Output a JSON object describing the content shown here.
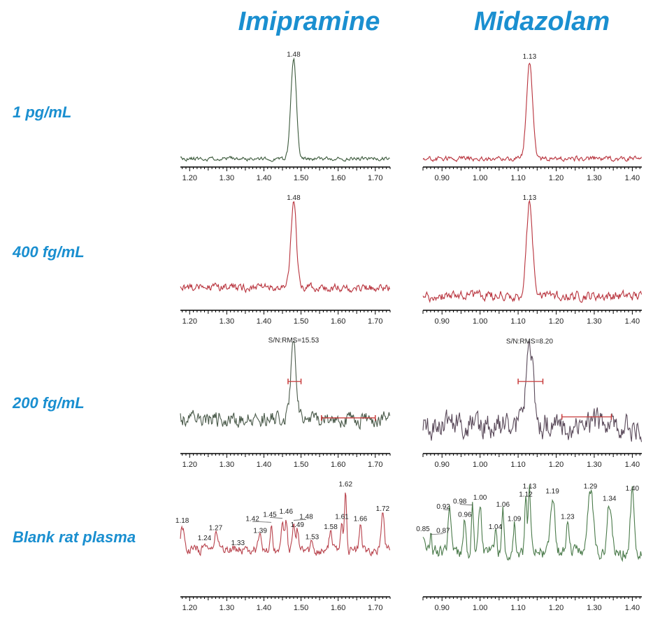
{
  "chart_data": {
    "type": "line",
    "columns": [
      "Imipramine",
      "Midazolam"
    ],
    "rows": [
      "1 pg/mL",
      "400 fg/mL",
      "200 fg/mL",
      "Blank rat plasma"
    ],
    "x_axes": {
      "Imipramine": {
        "xlim": [
          1.175,
          1.74
        ],
        "ticks": [
          "1.20",
          "1.30",
          "1.40",
          "1.50",
          "1.60",
          "1.70"
        ]
      },
      "Midazolam": {
        "xlim": [
          0.85,
          1.425
        ],
        "ticks": [
          "0.90",
          "1.00",
          "1.10",
          "1.20",
          "1.30",
          "1.40"
        ]
      }
    },
    "ylabel": "",
    "xlabel": "",
    "panels": [
      {
        "row": 0,
        "col": 0,
        "color": "#3c5a3c",
        "baseline": 2,
        "noise": 2,
        "seed": 11,
        "peaks": [
          {
            "rt": 1.48,
            "height": 98,
            "sigma": 0.0075,
            "label": "1.48"
          }
        ]
      },
      {
        "row": 0,
        "col": 1,
        "color": "#b8323c",
        "baseline": 2,
        "noise": 2.5,
        "seed": 23,
        "peaks": [
          {
            "rt": 1.13,
            "height": 96,
            "sigma": 0.008,
            "label": "1.13"
          }
        ]
      },
      {
        "row": 1,
        "col": 0,
        "color": "#b8323c",
        "baseline": 16,
        "noise": 4,
        "seed": 37,
        "peaks": [
          {
            "rt": 1.48,
            "height": 84,
            "sigma": 0.0075,
            "label": "1.48"
          }
        ]
      },
      {
        "row": 1,
        "col": 1,
        "color": "#b8323c",
        "baseline": 8,
        "noise": 5,
        "seed": 41,
        "peaks": [
          {
            "rt": 1.13,
            "height": 92,
            "sigma": 0.008,
            "label": "1.13"
          }
        ]
      },
      {
        "row": 2,
        "col": 0,
        "color": "#4a5a4a",
        "baseline": 28,
        "noise": 8,
        "seed": 53,
        "peaks": [
          {
            "rt": 1.48,
            "height": 72,
            "sigma": 0.0075
          }
        ],
        "annotation": "S/N:RMS=15.53",
        "signal_bar": {
          "x": [
            1.465,
            1.5
          ],
          "y": 65
        },
        "noise_bar": {
          "x": [
            1.555,
            1.7
          ],
          "y": 29
        }
      },
      {
        "row": 2,
        "col": 1,
        "color": "#5a4a5a",
        "baseline": 22,
        "noise": 14,
        "seed": 67,
        "peaks": [
          {
            "rt": 1.13,
            "height": 77,
            "sigma": 0.009
          }
        ],
        "annotation": "S/N:RMS=8.20",
        "signal_bar": {
          "x": [
            1.1,
            1.165
          ],
          "y": 65
        },
        "noise_bar": {
          "x": [
            1.215,
            1.345
          ],
          "y": 30
        }
      },
      {
        "row": 3,
        "col": 0,
        "color": "#b8424c",
        "baseline": 40,
        "noise": 5,
        "seed": 71,
        "peaks": [
          {
            "rt": 1.18,
            "height": 24,
            "sigma": 0.005,
            "label": "1.18"
          },
          {
            "rt": 1.24,
            "height": 7,
            "sigma": 0.004,
            "label": "1.24"
          },
          {
            "rt": 1.27,
            "height": 17,
            "sigma": 0.005,
            "label": "1.27"
          },
          {
            "rt": 1.33,
            "height": 2,
            "sigma": 0.004,
            "label": "1.33"
          },
          {
            "rt": 1.39,
            "height": 14,
            "sigma": 0.004,
            "label": "1.39"
          },
          {
            "rt": 1.42,
            "height": 26,
            "sigma": 0.003,
            "label": "1.42"
          },
          {
            "rt": 1.45,
            "height": 30,
            "sigma": 0.003,
            "label": "1.45"
          },
          {
            "rt": 1.46,
            "height": 33,
            "sigma": 0.003,
            "label": "1.46"
          },
          {
            "rt": 1.48,
            "height": 28,
            "sigma": 0.003,
            "label": "1.48"
          },
          {
            "rt": 1.49,
            "height": 20,
            "sigma": 0.003,
            "label": "1.49"
          },
          {
            "rt": 1.53,
            "height": 8,
            "sigma": 0.003,
            "label": "1.53"
          },
          {
            "rt": 1.58,
            "height": 18,
            "sigma": 0.004,
            "label": "1.58"
          },
          {
            "rt": 1.61,
            "height": 28,
            "sigma": 0.003,
            "label": "1.61"
          },
          {
            "rt": 1.62,
            "height": 60,
            "sigma": 0.003,
            "label": "1.62"
          },
          {
            "rt": 1.66,
            "height": 26,
            "sigma": 0.003,
            "label": "1.66"
          },
          {
            "rt": 1.72,
            "height": 36,
            "sigma": 0.004,
            "label": "1.72"
          }
        ]
      },
      {
        "row": 3,
        "col": 1,
        "color": "#4a7a4a",
        "baseline": 38,
        "noise": 7,
        "seed": 89,
        "peaks": [
          {
            "rt": 0.85,
            "height": 18,
            "sigma": 0.004,
            "label": "0.85"
          },
          {
            "rt": 0.87,
            "height": 16,
            "sigma": 0.003,
            "label": "0.87"
          },
          {
            "rt": 0.92,
            "height": 40,
            "sigma": 0.004,
            "label": "0.92"
          },
          {
            "rt": 0.96,
            "height": 32,
            "sigma": 0.003,
            "label": "0.96"
          },
          {
            "rt": 0.98,
            "height": 45,
            "sigma": 0.003,
            "label": "0.98"
          },
          {
            "rt": 1.0,
            "height": 49,
            "sigma": 0.004,
            "label": "1.00"
          },
          {
            "rt": 1.04,
            "height": 20,
            "sigma": 0.003,
            "label": "1.04"
          },
          {
            "rt": 1.06,
            "height": 42,
            "sigma": 0.003,
            "label": "1.06"
          },
          {
            "rt": 1.09,
            "height": 28,
            "sigma": 0.003,
            "label": "1.09"
          },
          {
            "rt": 1.12,
            "height": 52,
            "sigma": 0.003,
            "label": "1.12"
          },
          {
            "rt": 1.13,
            "height": 60,
            "sigma": 0.003,
            "label": "1.13"
          },
          {
            "rt": 1.19,
            "height": 55,
            "sigma": 0.006,
            "label": "1.19"
          },
          {
            "rt": 1.23,
            "height": 30,
            "sigma": 0.004,
            "label": "1.23"
          },
          {
            "rt": 1.29,
            "height": 60,
            "sigma": 0.008,
            "label": "1.29"
          },
          {
            "rt": 1.34,
            "height": 48,
            "sigma": 0.006,
            "label": "1.34"
          },
          {
            "rt": 1.4,
            "height": 58,
            "sigma": 0.005,
            "label": "1.40"
          }
        ]
      }
    ]
  }
}
